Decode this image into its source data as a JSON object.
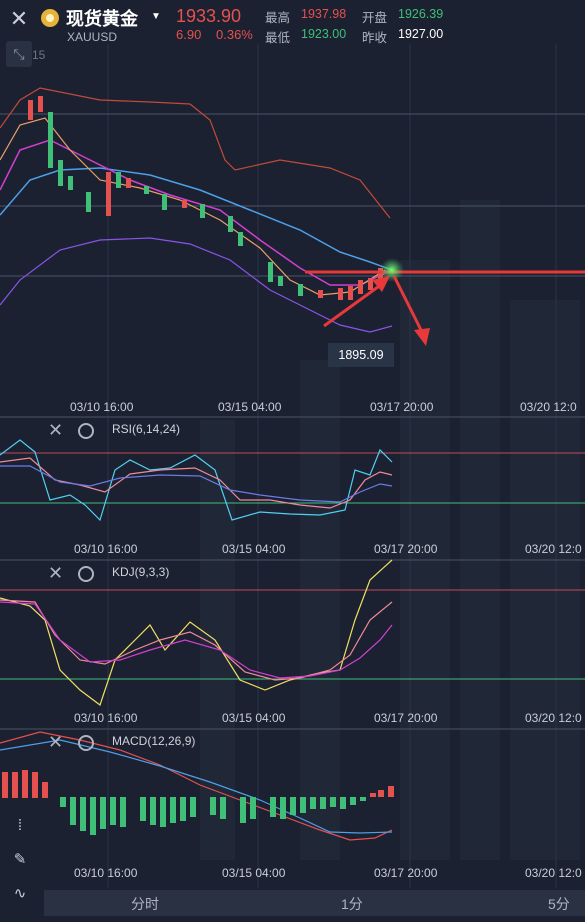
{
  "header": {
    "title": "现货黄金",
    "symbol": "XAUUSD",
    "price": "1933.90",
    "change": "6.90",
    "change_pct": "0.36%",
    "high_label": "最高",
    "high": "1937.98",
    "open_label": "开盘",
    "open": "1926.39",
    "low_label": "最低",
    "low": "1923.00",
    "prev_close_label": "昨收",
    "prev_close": "1927.00"
  },
  "toolbar": {
    "tool_count": "15"
  },
  "main_chart": {
    "price_tag": "1895.09"
  },
  "x_axis_ticks": [
    "03/10 16:00",
    "03/15 04:00",
    "03/17 20:00",
    "03/20 12:0"
  ],
  "indicators": {
    "rsi": {
      "label": "RSI(6,14,24)"
    },
    "kdj": {
      "label": "KDJ(9,3,3)"
    },
    "macd": {
      "label": "MACD(12,26,9)"
    }
  },
  "timeframes": [
    "分时",
    "1分",
    "5分"
  ],
  "colors": {
    "bg": "#1b2130",
    "up": "#e5514f",
    "down": "#3fbf78",
    "accent_arrow": "#e8393a"
  },
  "icons": [
    "close-icon",
    "gold-coin-icon",
    "dropdown-caret-icon",
    "draw-tool-icon",
    "gear-icon",
    "candles-icon",
    "pencil-icon",
    "indicator-icon"
  ]
}
